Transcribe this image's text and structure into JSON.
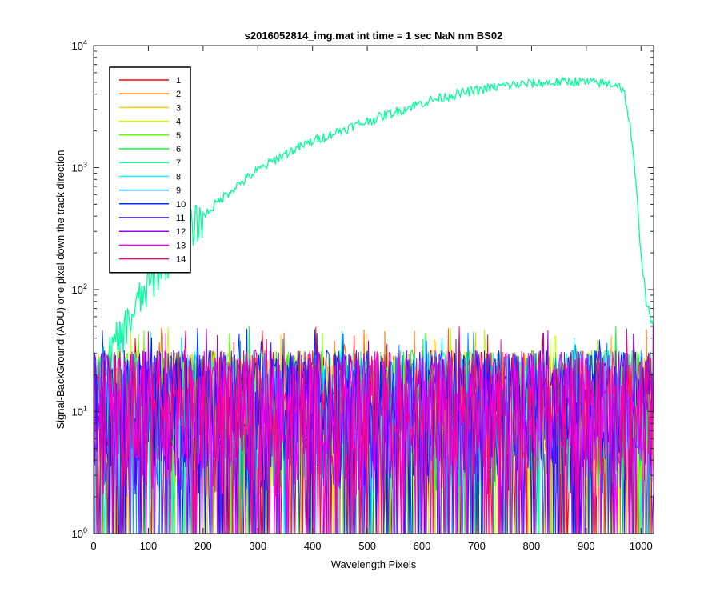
{
  "chart_data": {
    "type": "line",
    "title": "s2016052814_img.mat int time = 1 sec  NaN nm BS02",
    "xlabel": "Wavelength Pixels",
    "ylabel": "Signal-BackGround (ADU) one pixel down the track direction",
    "xlim": [
      0,
      1023
    ],
    "ylim": [
      1,
      10000
    ],
    "yscale": "log",
    "xticks": [
      0,
      100,
      200,
      300,
      400,
      500,
      600,
      700,
      800,
      900,
      1000
    ],
    "yticks": [
      {
        "value": 1,
        "base": "10",
        "exp": "0"
      },
      {
        "value": 10,
        "base": "10",
        "exp": "1"
      },
      {
        "value": 100,
        "base": "10",
        "exp": "2"
      },
      {
        "value": 1000,
        "base": "10",
        "exp": "3"
      },
      {
        "value": 10000,
        "base": "10",
        "exp": "4"
      }
    ],
    "grid": false,
    "legend_position": "top-left",
    "series": [
      {
        "name": "1",
        "color": "#ff0000",
        "noise": true
      },
      {
        "name": "2",
        "color": "#ff6a00",
        "noise": true
      },
      {
        "name": "3",
        "color": "#ffcc00",
        "noise": true
      },
      {
        "name": "4",
        "color": "#c8ff00",
        "noise": true
      },
      {
        "name": "5",
        "color": "#66ff00",
        "noise": true
      },
      {
        "name": "6",
        "color": "#00ff33",
        "noise": true
      },
      {
        "name": "7",
        "color": "#00ff99",
        "noise": false,
        "x": [
          0,
          20,
          40,
          60,
          80,
          100,
          130,
          160,
          200,
          250,
          300,
          350,
          400,
          450,
          500,
          550,
          600,
          650,
          700,
          750,
          800,
          850,
          880,
          900,
          930,
          950,
          960,
          970,
          980,
          990,
          1000,
          1010,
          1023
        ],
        "values": [
          18,
          24,
          35,
          50,
          75,
          105,
          170,
          250,
          400,
          650,
          950,
          1300,
          1650,
          2000,
          2400,
          2850,
          3400,
          3900,
          4300,
          4700,
          4900,
          5000,
          5100,
          5000,
          4900,
          4850,
          4800,
          4000,
          2200,
          800,
          200,
          80,
          45
        ]
      },
      {
        "name": "8",
        "color": "#00ffff",
        "noise": true
      },
      {
        "name": "9",
        "color": "#0099ff",
        "noise": true
      },
      {
        "name": "10",
        "color": "#0033ff",
        "noise": true
      },
      {
        "name": "11",
        "color": "#3300ff",
        "noise": true
      },
      {
        "name": "12",
        "color": "#9900ff",
        "noise": true
      },
      {
        "name": "13",
        "color": "#ff00ff",
        "noise": true
      },
      {
        "name": "14",
        "color": "#ff0080",
        "noise": true
      }
    ],
    "noise_band": {
      "min": 1,
      "max": 50
    }
  }
}
